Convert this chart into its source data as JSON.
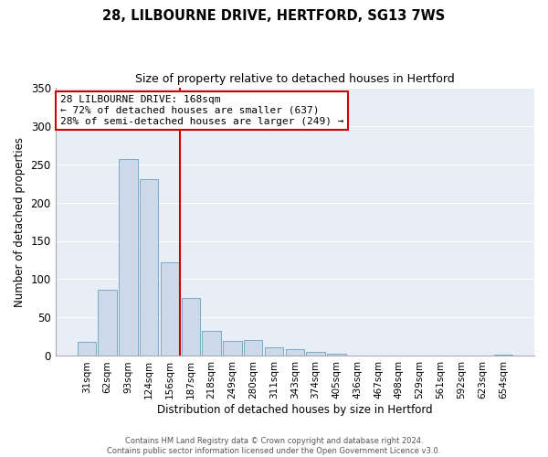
{
  "title_line1": "28, LILBOURNE DRIVE, HERTFORD, SG13 7WS",
  "title_line2": "Size of property relative to detached houses in Hertford",
  "xlabel": "Distribution of detached houses by size in Hertford",
  "ylabel": "Number of detached properties",
  "bar_color": "#cdd9e8",
  "bar_edge_color": "#7aaac8",
  "plot_bg_color": "#e8eef5",
  "categories": [
    "31sqm",
    "62sqm",
    "93sqm",
    "124sqm",
    "156sqm",
    "187sqm",
    "218sqm",
    "249sqm",
    "280sqm",
    "311sqm",
    "343sqm",
    "374sqm",
    "405sqm",
    "436sqm",
    "467sqm",
    "498sqm",
    "529sqm",
    "561sqm",
    "592sqm",
    "623sqm",
    "654sqm"
  ],
  "values": [
    19,
    86,
    257,
    230,
    122,
    76,
    33,
    20,
    21,
    11,
    9,
    5,
    3,
    1,
    1,
    0,
    0,
    0,
    0,
    0,
    2
  ],
  "ylim": [
    0,
    350
  ],
  "yticks": [
    0,
    50,
    100,
    150,
    200,
    250,
    300,
    350
  ],
  "vline_x": 4.5,
  "vline_color": "#cc0000",
  "annotation_title": "28 LILBOURNE DRIVE: 168sqm",
  "annotation_line1": "← 72% of detached houses are smaller (637)",
  "annotation_line2": "28% of semi-detached houses are larger (249) →",
  "footer_line1": "Contains HM Land Registry data © Crown copyright and database right 2024.",
  "footer_line2": "Contains public sector information licensed under the Open Government Licence v3.0.",
  "background_color": "#ffffff",
  "grid_color": "#ffffff"
}
